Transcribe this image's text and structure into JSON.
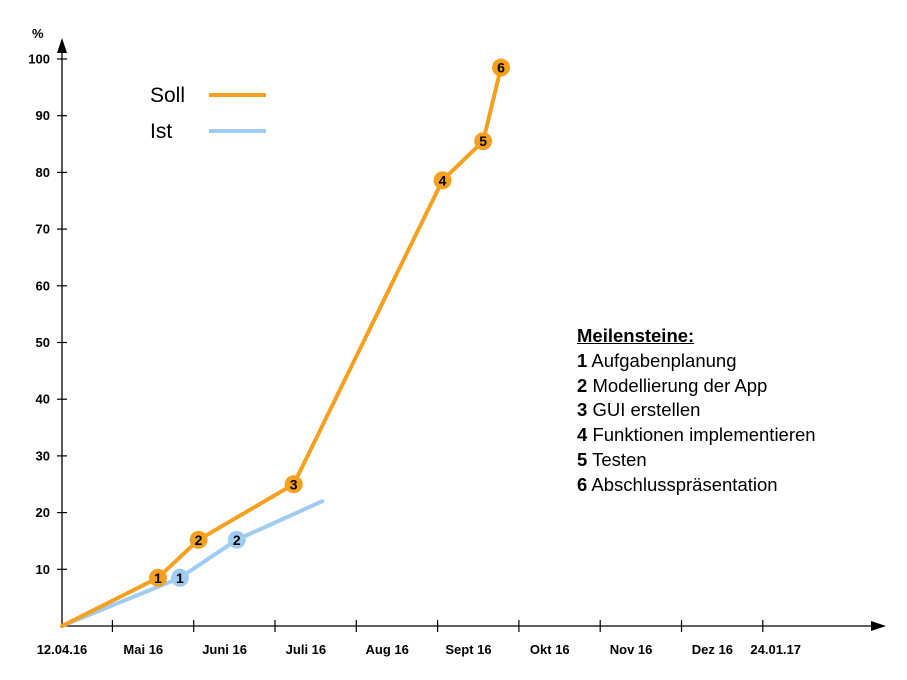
{
  "chart_data": {
    "type": "line",
    "ylabel": "%",
    "ylim": [
      0,
      100
    ],
    "y_ticks": [
      10,
      20,
      30,
      40,
      50,
      60,
      70,
      80,
      90,
      100
    ],
    "x_tick_labels": [
      "12.04.16",
      "Mai 16",
      "Juni 16",
      "Juli 16",
      "Aug 16",
      "Sept 16",
      "Okt 16",
      "Nov 16",
      "Dez 16",
      "24.01.17"
    ],
    "x_unit": "months since 12.04.16",
    "legend": [
      {
        "name": "Soll",
        "color": "#f5a11f"
      },
      {
        "name": "Ist",
        "color": "#9fccf0"
      }
    ],
    "series": [
      {
        "name": "Soll",
        "color": "#f5a11f",
        "points": [
          {
            "x": 0.0,
            "y": 0
          },
          {
            "x": 1.18,
            "y": 8.5,
            "milestone": "1"
          },
          {
            "x": 1.68,
            "y": 15.2,
            "milestone": "2"
          },
          {
            "x": 2.85,
            "y": 25.0,
            "milestone": "3"
          },
          {
            "x": 4.68,
            "y": 78.6,
            "milestone": "4"
          },
          {
            "x": 5.18,
            "y": 85.5,
            "milestone": "5"
          },
          {
            "x": 5.4,
            "y": 98.5,
            "milestone": "6"
          }
        ]
      },
      {
        "name": "Ist",
        "color": "#9fccf0",
        "points": [
          {
            "x": 0.0,
            "y": 0
          },
          {
            "x": 1.45,
            "y": 8.5,
            "milestone": "1"
          },
          {
            "x": 2.15,
            "y": 15.2,
            "milestone": "2"
          },
          {
            "x": 3.2,
            "y": 22.0
          }
        ]
      }
    ],
    "annotation": {
      "title": "Meilensteine:",
      "items": [
        {
          "num": "1",
          "text": "Aufgabenplanung"
        },
        {
          "num": "2",
          "text": "Modellierung der App"
        },
        {
          "num": "3",
          "text": "GUI erstellen"
        },
        {
          "num": "4",
          "text": "Funktionen implementieren"
        },
        {
          "num": "5",
          "text": "Testen"
        },
        {
          "num": "6",
          "text": "Abschlusspräsentation"
        }
      ]
    }
  }
}
